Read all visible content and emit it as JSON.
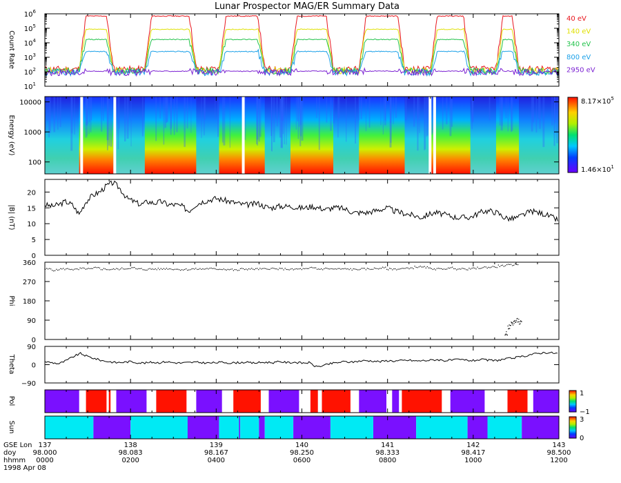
{
  "title": "Lunar Prospector MAG/ER Summary Data",
  "colors": {
    "e40": "#e8141b",
    "e140": "#e0e000",
    "e340": "#21c24a",
    "e800": "#1aa0e8",
    "e2950": "#7a1fd2",
    "pol_pos": "#ff1200",
    "pol_neg": "#7a10ff",
    "sun_lit": "#00eaf4",
    "sun_dark": "#7a10ff"
  },
  "chart_data": [
    {
      "type": "line",
      "panel": "count-rate",
      "ylabel": "Count Rate",
      "yscale": "log",
      "ylim": [
        10,
        1000000
      ],
      "yticks": [
        {
          "v": 1000000,
          "b": "10",
          "e": "6"
        },
        {
          "v": 100000,
          "b": "10",
          "e": "5"
        },
        {
          "v": 10000,
          "b": "10",
          "e": "4"
        },
        {
          "v": 1000,
          "b": "10",
          "e": "3"
        },
        {
          "v": 100,
          "b": "10",
          "e": "2"
        },
        {
          "v": 10,
          "b": "10",
          "e": "1"
        }
      ],
      "series": [
        {
          "name": "40 eV",
          "colorKey": "e40",
          "dayLevel": 700000,
          "nightLevel": 150
        },
        {
          "name": "140 eV",
          "colorKey": "e140",
          "dayLevel": 85000,
          "nightLevel": 120
        },
        {
          "name": "340 eV",
          "colorKey": "e340",
          "dayLevel": 17000,
          "nightLevel": 110
        },
        {
          "name": "800 eV",
          "colorKey": "e800",
          "dayLevel": 2500,
          "nightLevel": 90
        },
        {
          "name": "2950 eV",
          "colorKey": "e2950",
          "dayLevel": 110,
          "nightLevel": 90
        }
      ],
      "day_intervals": [
        [
          0.6,
          1.2
        ],
        [
          1.75,
          2.65
        ],
        [
          3.05,
          3.85
        ],
        [
          4.3,
          5.05
        ],
        [
          5.5,
          6.3
        ],
        [
          6.75,
          7.45
        ],
        [
          7.9,
          8.3
        ]
      ]
    },
    {
      "type": "heatmap",
      "panel": "energy-spectrogram",
      "ylabel": "Energy (eV)",
      "yscale": "log",
      "ylim": [
        40,
        15000
      ],
      "yticks": [
        {
          "v": 10000,
          "label": "10000"
        },
        {
          "v": 1000,
          "label": "1000"
        },
        {
          "v": 100,
          "label": "100"
        }
      ],
      "colorbar": {
        "max_b": "8.17×10",
        "max_e": "5",
        "min_b": "1.46×10",
        "min_e": "1"
      },
      "data_gaps": [
        0.62,
        1.2,
        3.45,
        6.72,
        6.8
      ]
    },
    {
      "type": "line",
      "panel": "b-magnitude",
      "ylabel": "|B| (nT)",
      "ylim": [
        0,
        24
      ],
      "yticks": [
        0,
        5,
        10,
        15,
        20
      ],
      "y": [
        16,
        15.5,
        16,
        17,
        16,
        13,
        17,
        19,
        20,
        22,
        23,
        21,
        18,
        17,
        16,
        17,
        16.5,
        17,
        16,
        16,
        15.5,
        14,
        16,
        17,
        17.5,
        18,
        17.5,
        17,
        16.5,
        16,
        16,
        16.5,
        15.5,
        15,
        15.5,
        15.5,
        15.5,
        15,
        15,
        15.5,
        15,
        14.5,
        15,
        15,
        14.5,
        13.5,
        13.5,
        13.5,
        14,
        14.5,
        15,
        14,
        13.5,
        13,
        12.5,
        12,
        13,
        13.5,
        13,
        12.5,
        12,
        12,
        12,
        13,
        14,
        14,
        13.5,
        12,
        11.5,
        12,
        13,
        14,
        13.5,
        13,
        12,
        11
      ]
    },
    {
      "type": "scatter",
      "panel": "phi",
      "ylabel": "Phi",
      "ylim": [
        0,
        360
      ],
      "yticks": [
        0,
        90,
        180,
        270,
        360
      ],
      "y": [
        330,
        325,
        330,
        330,
        328,
        332,
        330,
        335,
        330,
        328,
        330,
        332,
        335,
        330,
        328,
        330,
        330,
        332,
        330,
        328,
        328,
        330,
        330,
        332,
        330,
        330,
        328,
        325,
        330,
        330,
        330,
        330,
        332,
        330,
        330,
        328,
        330,
        330,
        335,
        330,
        332,
        330,
        330,
        330,
        328,
        330,
        330,
        332,
        335,
        330,
        330,
        332,
        335,
        340,
        338,
        332,
        330,
        332,
        335,
        330,
        330,
        332,
        335,
        338,
        340,
        345,
        348,
        350
      ],
      "tail_x": [
        8.05,
        8.1,
        8.15,
        8.2,
        8.25,
        8.3
      ],
      "tail_y": [
        30,
        60,
        75,
        85,
        90,
        80
      ]
    },
    {
      "type": "line",
      "panel": "theta",
      "ylabel": "Theta",
      "ylim": [
        -90,
        90
      ],
      "yticks": [
        {
          "v": 90,
          "label": "90"
        },
        {
          "v": 0,
          "label": "0"
        },
        {
          "v": -90,
          "label": "−90"
        }
      ],
      "y": [
        15,
        10,
        5,
        20,
        40,
        55,
        40,
        30,
        20,
        15,
        10,
        12,
        15,
        10,
        8,
        12,
        10,
        15,
        10,
        8,
        10,
        12,
        10,
        8,
        10,
        12,
        8,
        10,
        12,
        8,
        10,
        12,
        10,
        15,
        10,
        12,
        8,
        10,
        -10,
        -5,
        5,
        10,
        15,
        12,
        18,
        20,
        18,
        15,
        20,
        18,
        20,
        22,
        18,
        20,
        22,
        25,
        20,
        22,
        25,
        22,
        20,
        25,
        22,
        20,
        25,
        30,
        35,
        40,
        50,
        55,
        60,
        58,
        55
      ]
    },
    {
      "type": "heatmap",
      "panel": "polarity",
      "ylabel": "Pol",
      "colorbar": {
        "top": "1",
        "bottom": "−1",
        "side": "Pol"
      },
      "segments": [
        [
          0.0,
          0.6,
          -1
        ],
        [
          0.6,
          0.72,
          0
        ],
        [
          0.72,
          1.08,
          1
        ],
        [
          1.08,
          1.12,
          0
        ],
        [
          1.12,
          1.15,
          1
        ],
        [
          1.15,
          1.25,
          0
        ],
        [
          1.25,
          1.78,
          -1
        ],
        [
          1.78,
          1.95,
          0
        ],
        [
          1.95,
          2.48,
          1
        ],
        [
          2.48,
          2.65,
          0
        ],
        [
          2.65,
          3.1,
          -1
        ],
        [
          3.1,
          3.3,
          0
        ],
        [
          3.3,
          3.78,
          1
        ],
        [
          3.78,
          3.92,
          0
        ],
        [
          3.92,
          4.45,
          -1
        ],
        [
          4.45,
          4.65,
          0
        ],
        [
          4.65,
          4.78,
          1
        ],
        [
          4.78,
          4.85,
          0
        ],
        [
          4.85,
          5.35,
          1
        ],
        [
          5.35,
          5.5,
          0
        ],
        [
          5.5,
          5.98,
          -1
        ],
        [
          5.98,
          6.08,
          0
        ],
        [
          6.08,
          6.2,
          -1
        ],
        [
          6.2,
          6.25,
          0
        ],
        [
          6.25,
          6.95,
          1
        ],
        [
          6.95,
          7.1,
          0
        ],
        [
          7.1,
          7.7,
          -1
        ],
        [
          7.7,
          8.1,
          0
        ],
        [
          8.1,
          8.45,
          1
        ],
        [
          8.45,
          8.55,
          0
        ],
        [
          8.55,
          9.0,
          -1
        ]
      ]
    },
    {
      "type": "heatmap",
      "panel": "sun",
      "ylabel": "Sun",
      "colorbar": {
        "top": "3",
        "bottom": "0",
        "side": "Sun"
      },
      "segments": [
        [
          0.0,
          0.85,
          3
        ],
        [
          0.85,
          1.5,
          0
        ],
        [
          1.5,
          2.5,
          3
        ],
        [
          2.5,
          3.05,
          0
        ],
        [
          3.05,
          3.4,
          3
        ],
        [
          3.4,
          3.42,
          0
        ],
        [
          3.42,
          3.75,
          3
        ],
        [
          3.75,
          3.85,
          0
        ],
        [
          3.85,
          4.35,
          3
        ],
        [
          4.35,
          5.0,
          0
        ],
        [
          5.0,
          5.75,
          3
        ],
        [
          5.75,
          6.5,
          0
        ],
        [
          6.5,
          7.4,
          3
        ],
        [
          7.4,
          7.75,
          0
        ],
        [
          7.75,
          8.35,
          3
        ],
        [
          8.35,
          9.0,
          0
        ]
      ]
    }
  ],
  "x_axis": {
    "row_labels": [
      "GSE Lon",
      "doy",
      "hhmm"
    ],
    "date": "1998 Apr 08",
    "ticks": [
      {
        "lon": "137",
        "doy": "98.000",
        "hhmm": "0000"
      },
      {
        "lon": "138",
        "doy": "98.083",
        "hhmm": "0200"
      },
      {
        "lon": "139",
        "doy": "98.167",
        "hhmm": "0400"
      },
      {
        "lon": "140",
        "doy": "98.250",
        "hhmm": "0600"
      },
      {
        "lon": "141",
        "doy": "98.333",
        "hhmm": "0800"
      },
      {
        "lon": "142",
        "doy": "98.417",
        "hhmm": "1000"
      },
      {
        "lon": "143",
        "doy": "98.500",
        "hhmm": "1200"
      }
    ]
  }
}
